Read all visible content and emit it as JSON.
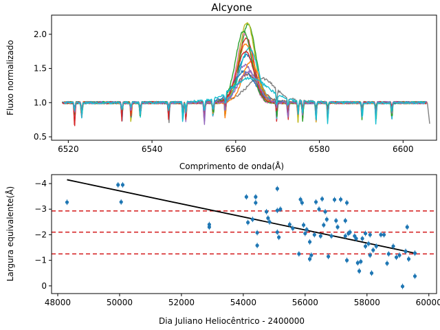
{
  "chart_data": [
    {
      "type": "line",
      "title": "Alcyone",
      "xlabel": "Comprimento de onda(Å)",
      "ylabel": "Fluxo normalizado",
      "xlim": [
        6516,
        6608
      ],
      "ylim": [
        0.45,
        2.28
      ],
      "xticks": [
        6520,
        6540,
        6560,
        6580,
        6600
      ],
      "yticks": [
        0.5,
        1.0,
        1.5,
        2.0
      ],
      "grid": false,
      "series": [
        {
          "color": "#1f77b4",
          "peak": 1.7,
          "center": 6562.6,
          "width": 3.0
        },
        {
          "color": "#ff7f0e",
          "peak": 1.85,
          "center": 6562.4,
          "width": 2.9
        },
        {
          "color": "#2ca02c",
          "peak": 2.15,
          "center": 6563.0,
          "width": 2.6
        },
        {
          "color": "#d62728",
          "peak": 1.95,
          "center": 6562.5,
          "width": 2.7
        },
        {
          "color": "#9467bd",
          "peak": 1.55,
          "center": 6562.2,
          "width": 3.2
        },
        {
          "color": "#8c564b",
          "peak": 1.35,
          "center": 6562.8,
          "width": 3.6
        },
        {
          "color": "#e377c2",
          "peak": 2.0,
          "center": 6562.1,
          "width": 2.5
        },
        {
          "color": "#7f7f7f",
          "peak": 1.3,
          "center": 6566.0,
          "width": 4.5
        },
        {
          "color": "#bcbd22",
          "peak": 2.18,
          "center": 6562.7,
          "width": 2.6
        },
        {
          "color": "#17becf",
          "peak": 1.8,
          "center": 6563.2,
          "width": 3.0
        },
        {
          "color": "#1f77b4",
          "peak": 1.4,
          "center": 6562.0,
          "width": 3.4
        },
        {
          "color": "#ff7f0e",
          "peak": 1.6,
          "center": 6563.6,
          "width": 2.8
        },
        {
          "color": "#2ca02c",
          "peak": 2.05,
          "center": 6561.9,
          "width": 2.7
        },
        {
          "color": "#d62728",
          "peak": 1.75,
          "center": 6562.3,
          "width": 2.9
        },
        {
          "color": "#9467bd",
          "peak": 1.45,
          "center": 6563.0,
          "width": 3.3
        },
        {
          "color": "#17becf",
          "peak": 1.3,
          "center": 6563.5,
          "width": 5.5
        }
      ]
    },
    {
      "type": "scatter",
      "xlabel": "Dia Juliano Heliocêntrico - 2400000",
      "ylabel": "Largura equivalente(Å)",
      "xlim": [
        47800,
        60250
      ],
      "ylim": [
        0.3,
        -4.35
      ],
      "xticks": [
        48000,
        50000,
        52000,
        54000,
        56000,
        58000,
        60000
      ],
      "yticks": [
        0,
        -1,
        -2,
        -3,
        -4
      ],
      "grid": false,
      "point_color": "#1f77b4",
      "points": [
        [
          48300,
          -3.27
        ],
        [
          49950,
          -3.95
        ],
        [
          50100,
          -3.95
        ],
        [
          50050,
          -3.28
        ],
        [
          52900,
          -2.4
        ],
        [
          52900,
          -2.3
        ],
        [
          54100,
          -3.48
        ],
        [
          54150,
          -2.48
        ],
        [
          54300,
          -2.6
        ],
        [
          54400,
          -3.25
        ],
        [
          54400,
          -3.48
        ],
        [
          54450,
          -2.08
        ],
        [
          54450,
          -1.58
        ],
        [
          54750,
          -2.9
        ],
        [
          54800,
          -2.65
        ],
        [
          54850,
          -2.5
        ],
        [
          55100,
          -3.8
        ],
        [
          55100,
          -2.95
        ],
        [
          55100,
          -2.1
        ],
        [
          55150,
          -1.9
        ],
        [
          55200,
          -3.0
        ],
        [
          55500,
          -2.4
        ],
        [
          55600,
          -2.25
        ],
        [
          55800,
          -1.25
        ],
        [
          55850,
          -3.38
        ],
        [
          55900,
          -3.25
        ],
        [
          55950,
          -2.38
        ],
        [
          56000,
          -2.05
        ],
        [
          56050,
          -2.2
        ],
        [
          56150,
          -1.05
        ],
        [
          56200,
          -1.2
        ],
        [
          56150,
          -1.72
        ],
        [
          56300,
          -2.0
        ],
        [
          56350,
          -3.28
        ],
        [
          56450,
          -3.0
        ],
        [
          56500,
          -1.95
        ],
        [
          56550,
          -3.4
        ],
        [
          56600,
          -2.38
        ],
        [
          56650,
          -2.9
        ],
        [
          56700,
          -2.6
        ],
        [
          56750,
          -1.15
        ],
        [
          56850,
          -1.95
        ],
        [
          56950,
          -3.37
        ],
        [
          57000,
          -2.55
        ],
        [
          57050,
          -2.3
        ],
        [
          57150,
          -3.38
        ],
        [
          57300,
          -2.55
        ],
        [
          57300,
          -1.95
        ],
        [
          57350,
          -3.25
        ],
        [
          57350,
          -1.0
        ],
        [
          57400,
          -2.05
        ],
        [
          57450,
          -2.1
        ],
        [
          57600,
          -1.95
        ],
        [
          57650,
          -1.85
        ],
        [
          57700,
          -0.9
        ],
        [
          57750,
          -0.58
        ],
        [
          57800,
          -0.95
        ],
        [
          57850,
          -1.85
        ],
        [
          57950,
          -2.05
        ],
        [
          57950,
          -1.55
        ],
        [
          58050,
          -1.65
        ],
        [
          58100,
          -2.0
        ],
        [
          58100,
          -1.2
        ],
        [
          58150,
          -0.5
        ],
        [
          58200,
          -1.4
        ],
        [
          58300,
          -1.55
        ],
        [
          58450,
          -2.0
        ],
        [
          58550,
          -2.0
        ],
        [
          58650,
          -0.88
        ],
        [
          58700,
          -1.25
        ],
        [
          58850,
          -1.55
        ],
        [
          58950,
          -1.12
        ],
        [
          59050,
          -1.2
        ],
        [
          59150,
          0.02
        ],
        [
          59250,
          -1.35
        ],
        [
          59300,
          -2.3
        ],
        [
          59350,
          -1.05
        ],
        [
          59550,
          -1.28
        ],
        [
          59550,
          -0.38
        ]
      ],
      "trend_line": {
        "x": [
          48300,
          59550
        ],
        "y": [
          -4.15,
          -1.28
        ],
        "color": "#000000"
      },
      "reference_lines": {
        "y": [
          -2.93,
          -2.1,
          -1.25
        ],
        "color": "#d62728",
        "style": "dashed"
      }
    }
  ]
}
